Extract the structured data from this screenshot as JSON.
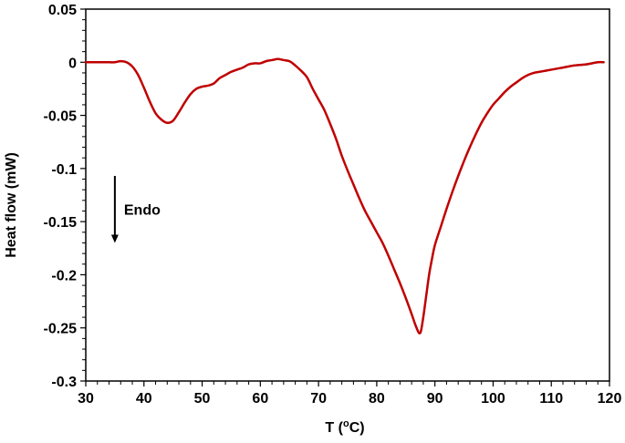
{
  "chart_data": {
    "type": "line",
    "title": "",
    "xlabel_main": "T (",
    "xlabel_sup": "o",
    "xlabel_end": "C)",
    "ylabel": "Heat flow (mW)",
    "xlim": [
      30,
      120
    ],
    "ylim": [
      -0.3,
      0.05
    ],
    "x_ticks": [
      30,
      40,
      50,
      60,
      70,
      80,
      90,
      100,
      110,
      120
    ],
    "x_tick_labels": [
      "30",
      "40",
      "50",
      "60",
      "70",
      "80",
      "90",
      "100",
      "110",
      "120"
    ],
    "y_ticks": [
      0.05,
      0,
      -0.05,
      -0.1,
      -0.15,
      -0.2,
      -0.25,
      -0.3
    ],
    "y_tick_labels": [
      "0.05",
      "0",
      "-0.05",
      "-0.1",
      "-0.15",
      "-0.2",
      "-0.25",
      "-0.3"
    ],
    "grid": false,
    "legend": "none",
    "annotation": {
      "text": "Endo",
      "arrow": "down",
      "x": 35,
      "y_from": -0.107,
      "y_to": -0.17
    },
    "series": [
      {
        "color": "#c00000",
        "x": [
          30,
          32,
          34,
          35,
          36,
          37,
          38,
          39,
          40,
          41,
          42,
          43,
          44,
          45,
          46,
          47,
          48,
          49,
          50,
          51,
          52,
          53,
          54,
          55,
          56,
          57,
          58,
          59,
          60,
          61,
          62,
          63,
          64,
          65,
          66,
          67,
          68,
          69,
          70,
          71,
          72,
          73,
          74,
          75,
          76,
          77,
          78,
          79,
          80,
          81,
          82,
          83,
          84,
          85,
          86,
          86.5,
          87,
          87.3,
          87.6,
          88,
          88.5,
          89,
          89.5,
          90,
          91,
          92,
          93,
          94,
          95,
          96,
          97,
          98,
          99,
          100,
          101,
          102,
          103,
          104,
          105,
          106,
          107,
          108,
          109,
          110,
          112,
          114,
          116,
          118,
          119
        ],
        "y": [
          0,
          0,
          0,
          0,
          0.001,
          0,
          -0.004,
          -0.012,
          -0.024,
          -0.037,
          -0.048,
          -0.054,
          -0.057,
          -0.055,
          -0.047,
          -0.038,
          -0.03,
          -0.025,
          -0.023,
          -0.022,
          -0.02,
          -0.015,
          -0.012,
          -0.009,
          -0.007,
          -0.005,
          -0.002,
          -0.001,
          -0.001,
          0.001,
          0.002,
          0.003,
          0.002,
          0.001,
          -0.003,
          -0.008,
          -0.014,
          -0.025,
          -0.035,
          -0.045,
          -0.058,
          -0.072,
          -0.088,
          -0.102,
          -0.115,
          -0.128,
          -0.14,
          -0.15,
          -0.16,
          -0.17,
          -0.182,
          -0.195,
          -0.208,
          -0.222,
          -0.237,
          -0.245,
          -0.252,
          -0.255,
          -0.253,
          -0.24,
          -0.22,
          -0.2,
          -0.185,
          -0.172,
          -0.155,
          -0.138,
          -0.122,
          -0.107,
          -0.093,
          -0.08,
          -0.068,
          -0.057,
          -0.048,
          -0.04,
          -0.034,
          -0.028,
          -0.023,
          -0.019,
          -0.015,
          -0.012,
          -0.01,
          -0.009,
          -0.008,
          -0.007,
          -0.005,
          -0.003,
          -0.002,
          0,
          0
        ]
      }
    ]
  }
}
